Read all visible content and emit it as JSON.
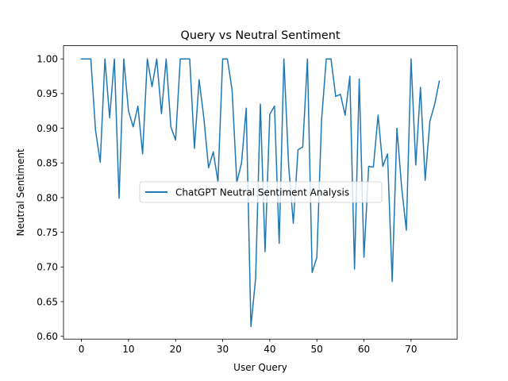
{
  "chart_data": {
    "type": "line",
    "title": "Query vs Neutral Sentiment",
    "xlabel": "User Query",
    "ylabel": "Neutral Sentiment",
    "xlim": [
      -3.8,
      79.8
    ],
    "ylim": [
      0.596,
      1.019
    ],
    "xticks": [
      0,
      10,
      20,
      30,
      40,
      50,
      60,
      70
    ],
    "yticks": [
      0.6,
      0.65,
      0.7,
      0.75,
      0.8,
      0.85,
      0.9,
      0.95,
      1.0
    ],
    "xtick_labels": [
      "0",
      "10",
      "20",
      "30",
      "40",
      "50",
      "60",
      "70"
    ],
    "ytick_labels": [
      "0.60",
      "0.65",
      "0.70",
      "0.75",
      "0.80",
      "0.85",
      "0.90",
      "0.95",
      "1.00"
    ],
    "grid": false,
    "legend_position": "center",
    "series": [
      {
        "name": "ChatGPT Neutral Sentiment Analysis",
        "color": "#1f77b4",
        "x": [
          0,
          1,
          2,
          3,
          4,
          5,
          6,
          7,
          8,
          9,
          10,
          11,
          12,
          13,
          14,
          15,
          16,
          17,
          18,
          19,
          20,
          21,
          22,
          23,
          24,
          25,
          26,
          27,
          28,
          29,
          30,
          31,
          32,
          33,
          34,
          35,
          36,
          37,
          38,
          39,
          40,
          41,
          42,
          43,
          44,
          45,
          46,
          47,
          48,
          49,
          50,
          51,
          52,
          53,
          54,
          55,
          56,
          57,
          58,
          59,
          60,
          61,
          62,
          63,
          64,
          65,
          66,
          67,
          68,
          69,
          70,
          71,
          72,
          73,
          74,
          75,
          76
        ],
        "values": [
          1.0,
          1.0,
          1.0,
          0.897,
          0.851,
          1.0,
          0.915,
          1.0,
          0.799,
          1.0,
          0.925,
          0.902,
          0.932,
          0.863,
          1.0,
          0.96,
          1.0,
          0.921,
          1.0,
          0.902,
          0.883,
          1.0,
          1.0,
          1.0,
          0.871,
          0.97,
          0.915,
          0.843,
          0.866,
          0.823,
          1.0,
          1.0,
          0.955,
          0.822,
          0.85,
          0.929,
          0.614,
          0.684,
          0.935,
          0.722,
          0.92,
          0.932,
          0.734,
          1.0,
          0.847,
          0.763,
          0.869,
          0.873,
          1.0,
          0.692,
          0.714,
          0.912,
          1.0,
          1.0,
          0.946,
          0.949,
          0.919,
          0.975,
          0.697,
          0.971,
          0.714,
          0.845,
          0.844,
          0.919,
          0.845,
          0.863,
          0.679,
          0.9,
          0.815,
          0.753,
          1.0,
          0.847,
          0.959,
          0.825,
          0.91,
          0.934,
          0.968
        ]
      }
    ]
  }
}
